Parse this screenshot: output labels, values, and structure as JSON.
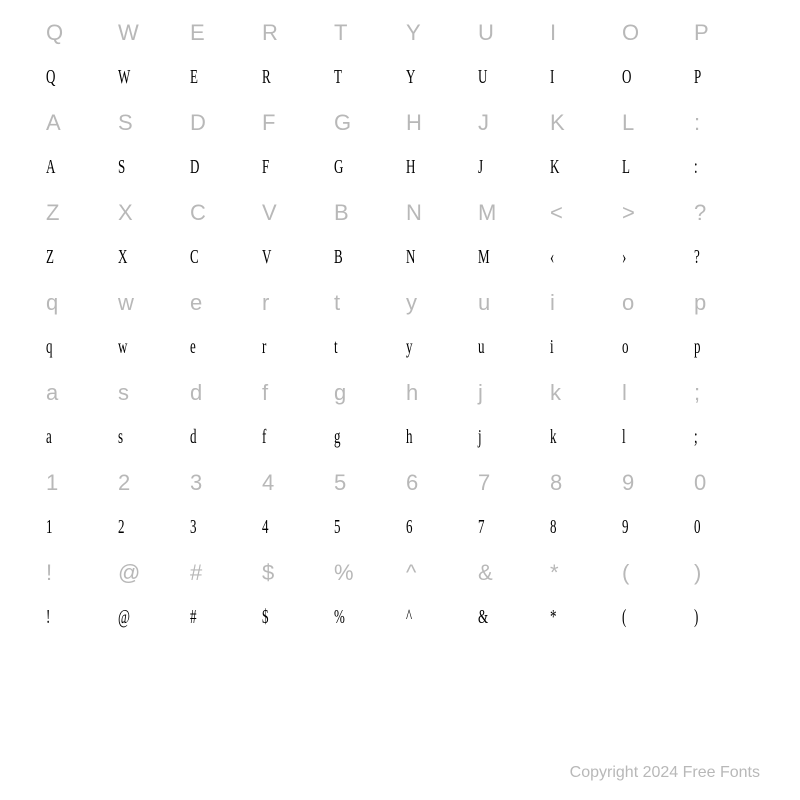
{
  "rows": [
    {
      "type": "label",
      "chars": [
        "Q",
        "W",
        "E",
        "R",
        "T",
        "Y",
        "U",
        "I",
        "O",
        "P"
      ]
    },
    {
      "type": "glyph",
      "chars": [
        "Q",
        "W",
        "E",
        "R",
        "T",
        "Y",
        "U",
        "I",
        "O",
        "P"
      ]
    },
    {
      "type": "label",
      "chars": [
        "A",
        "S",
        "D",
        "F",
        "G",
        "H",
        "J",
        "K",
        "L",
        ":"
      ]
    },
    {
      "type": "glyph",
      "chars": [
        "A",
        "S",
        "D",
        "F",
        "G",
        "H",
        "J",
        "K",
        "L",
        ":"
      ]
    },
    {
      "type": "label",
      "chars": [
        "Z",
        "X",
        "C",
        "V",
        "B",
        "N",
        "M",
        "<",
        ">",
        "?"
      ]
    },
    {
      "type": "glyph",
      "chars": [
        "Z",
        "X",
        "C",
        "V",
        "B",
        "N",
        "M",
        "‹",
        "›",
        "?"
      ]
    },
    {
      "type": "label",
      "chars": [
        "q",
        "w",
        "e",
        "r",
        "t",
        "y",
        "u",
        "i",
        "o",
        "p"
      ]
    },
    {
      "type": "glyph",
      "chars": [
        "q",
        "w",
        "e",
        "r",
        "t",
        "y",
        "u",
        "i",
        "o",
        "p"
      ]
    },
    {
      "type": "label",
      "chars": [
        "a",
        "s",
        "d",
        "f",
        "g",
        "h",
        "j",
        "k",
        "l",
        ";"
      ]
    },
    {
      "type": "glyph",
      "chars": [
        "a",
        "s",
        "d",
        "f",
        "g",
        "h",
        "j",
        "k",
        "l",
        ";"
      ]
    },
    {
      "type": "label",
      "chars": [
        "1",
        "2",
        "3",
        "4",
        "5",
        "6",
        "7",
        "8",
        "9",
        "0"
      ]
    },
    {
      "type": "glyph",
      "chars": [
        "1",
        "2",
        "3",
        "4",
        "5",
        "6",
        "7",
        "8",
        "9",
        "0"
      ]
    },
    {
      "type": "label",
      "chars": [
        "!",
        "@",
        "#",
        "$",
        "%",
        "^",
        "&",
        "*",
        "(",
        ")"
      ]
    },
    {
      "type": "glyph",
      "chars": [
        "!",
        "@",
        "#",
        "$",
        "%",
        "^",
        "&",
        "*",
        "(",
        ")"
      ]
    }
  ],
  "copyright": "Copyright 2024 Free Fonts",
  "colors": {
    "label": "#b8b8b8",
    "glyph": "#000000",
    "background": "#ffffff"
  },
  "font_sizes": {
    "label": 22,
    "glyph": 20,
    "copyright": 16
  }
}
